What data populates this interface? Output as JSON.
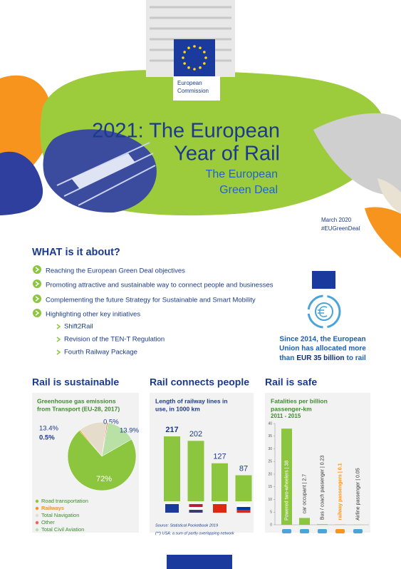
{
  "header": {
    "organization_lines": [
      "European",
      "Commission"
    ]
  },
  "title_lines": [
    "2021: The European",
    "Year of Rail"
  ],
  "subtitle_lines": [
    "The European",
    "Green Deal"
  ],
  "date": "March 2020",
  "hashtag": "#EUGreenDeal",
  "about": {
    "heading": "WHAT is it about?",
    "items": [
      "Reaching the European Green Deal objectives",
      "Promoting attractive and sustainable way to connect people and businesses",
      "Complementing the future Strategy for Sustainable and Smart Mobility",
      "Highlighting other key initiatives"
    ],
    "initiatives": [
      "Shift2Rail",
      "Revision of the TEN-T Regulation",
      "Fourth Railway Package"
    ]
  },
  "funding": {
    "lines": [
      "Since 2014, the European",
      "Union has allocated more",
      "than"
    ],
    "highlight": "EUR 35 billion",
    "after": "to rail"
  },
  "sections": [
    "Rail is sustainable",
    "Rail connects people",
    "Rail is safe"
  ],
  "chart_data": [
    {
      "type": "pie",
      "title_lines": [
        "Greenhouse gas emissions",
        "from Transport (EU-28, 2017)"
      ],
      "categories": [
        "Road transportation",
        "Railways",
        "Total Navigation",
        "Other",
        "Total Civil Aviation"
      ],
      "values": [
        72,
        0.5,
        13.4,
        0.5,
        13.9
      ],
      "value_labels": [
        "72%",
        "0.5%",
        "13.4%",
        "0.5%",
        "13.9%"
      ],
      "colors": [
        "#8cc63f",
        "#f7941d",
        "#e6dccb",
        "#f0655a",
        "#b9e0a5"
      ]
    },
    {
      "type": "bar",
      "title_lines": [
        "Length of railway lines in",
        "use, in 1000 km"
      ],
      "categories": [
        null,
        null,
        null,
        null
      ],
      "values": [
        217,
        202,
        127,
        87
      ],
      "color": "#8cc63f",
      "source": "Source: Statistical Pocketbook 2019",
      "note": "(**) USA: a sum of partly overlapping network"
    },
    {
      "type": "bar",
      "title_lines": [
        "Fatalities per billion",
        "passenger-km"
      ],
      "subtitle": "2011 - 2015",
      "categories": [
        null,
        null,
        null,
        null,
        null
      ],
      "values": [
        38,
        2.7,
        0.23,
        0.1,
        0.05
      ],
      "value_labels": [
        "Powered two-wheelers | 38",
        "car occupant | 2.7",
        "Bus / coach passenger | 0.23",
        "railway passengers | 0.1",
        "Airline passenger | 0.05"
      ],
      "colors": [
        "#8cc63f",
        "#8cc63f",
        "#8cc63f",
        "#f7941d",
        "#8cc63f"
      ],
      "ylim": [
        0,
        40
      ],
      "yticks": [
        0,
        5,
        10,
        15,
        20,
        25,
        30,
        35,
        40
      ]
    }
  ]
}
